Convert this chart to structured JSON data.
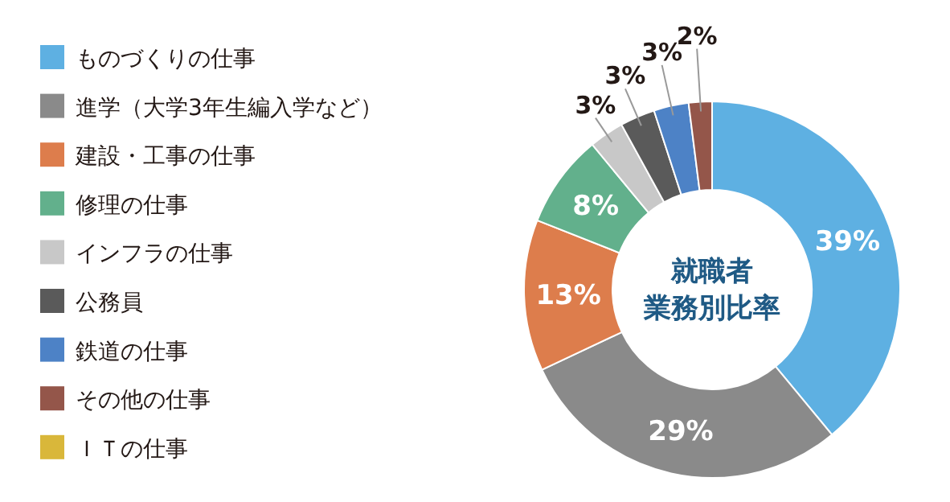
{
  "chart_data": {
    "type": "donut",
    "title": "就職者業務別比率",
    "categories": [
      "ものづくりの仕事",
      "進学（大学3年生編入学など）",
      "建設・工事の仕事",
      "修理の仕事",
      "インフラの仕事",
      "公務員",
      "鉄道の仕事",
      "その他の仕事",
      "ＩＴの仕事"
    ],
    "values": [
      39,
      29,
      13,
      8,
      3,
      3,
      3,
      2,
      0
    ],
    "colors": [
      "#5eb0e2",
      "#8a8a8a",
      "#dd7d4c",
      "#62b08c",
      "#c8c8c8",
      "#5a5a5a",
      "#4d82c6",
      "#94564a",
      "#d9b73a"
    ],
    "value_labels": [
      "39%",
      "29%",
      "13%",
      "8%",
      "3%",
      "3%",
      "3%",
      "2%",
      null
    ],
    "legend": "left"
  }
}
